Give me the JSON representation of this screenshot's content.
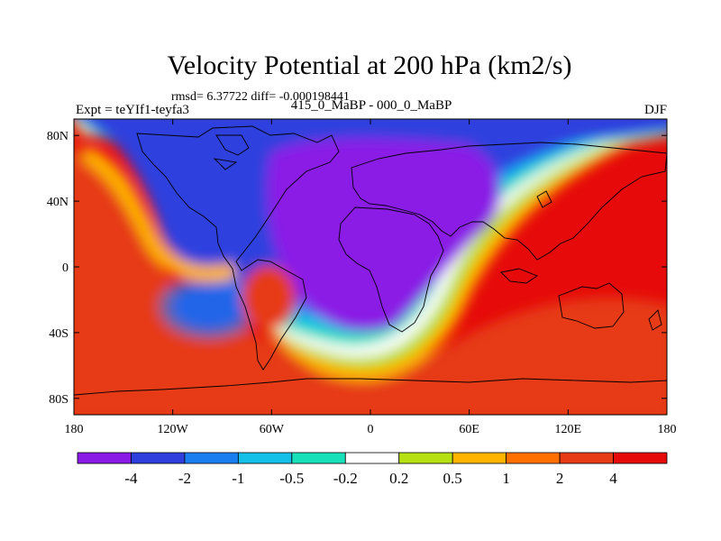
{
  "chart_data": {
    "type": "filled-contour-map",
    "title": "Velocity Potential at 200 hPa (km2/s)",
    "stats": "rmsd= 6.37722 diff= -0.000198441",
    "left_label": "Expt = teYIf1-teyfa3",
    "center_label": "415_0_MaBP - 000_0_MaBP",
    "right_label": "DJF",
    "x_ticks": [
      {
        "lon": -180,
        "label": "180"
      },
      {
        "lon": -120,
        "label": "120W"
      },
      {
        "lon": -60,
        "label": "60W"
      },
      {
        "lon": 0,
        "label": "0"
      },
      {
        "lon": 60,
        "label": "60E"
      },
      {
        "lon": 120,
        "label": "120E"
      },
      {
        "lon": 180,
        "label": "180"
      }
    ],
    "y_ticks": [
      {
        "lat": 80,
        "label": "80N"
      },
      {
        "lat": 40,
        "label": "40N"
      },
      {
        "lat": 0,
        "label": "0"
      },
      {
        "lat": -40,
        "label": "40S"
      },
      {
        "lat": -80,
        "label": "80S"
      }
    ],
    "xlim": [
      -180,
      180
    ],
    "ylim": [
      -90,
      90
    ],
    "contour_levels": [
      -4,
      -2,
      -1,
      -0.5,
      -0.2,
      0.2,
      0.5,
      1,
      2,
      4
    ],
    "level_labels": [
      "-4",
      "-2",
      "-1",
      "-0.5",
      "-0.2",
      "0.2",
      "0.5",
      "1",
      "2",
      "4"
    ],
    "colors": [
      "#8a1ae6",
      "#2f3fde",
      "#1a7ef0",
      "#14bfe8",
      "#18e0b8",
      "#ffffff",
      "#b6e012",
      "#ffb400",
      "#ff7000",
      "#e63b14",
      "#e60a0a"
    ]
  }
}
